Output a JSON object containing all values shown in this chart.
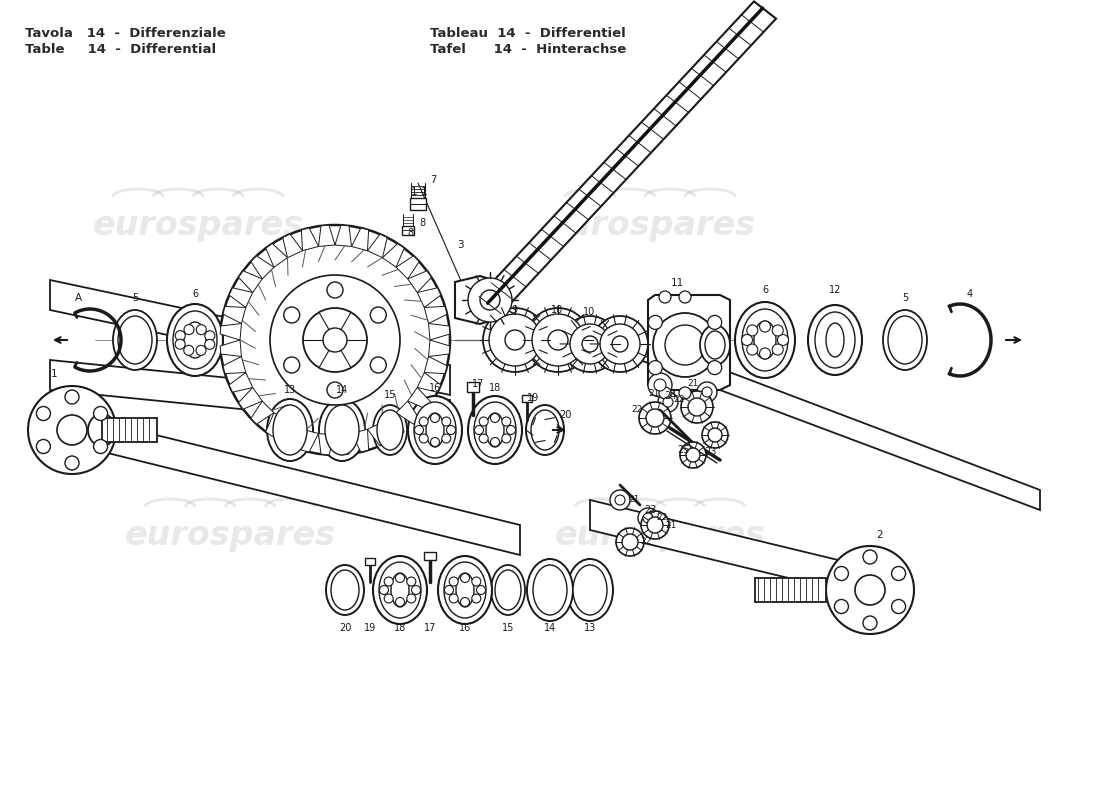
{
  "bg_color": "#ffffff",
  "line_color": "#1a1a1a",
  "header_color": "#2a2a2a",
  "watermark_color": "#cccccc",
  "watermark_alpha": 0.45,
  "figsize": [
    11.0,
    8.0
  ],
  "dpi": 100,
  "header": {
    "left1": "Tavola   14  -  Differenziale",
    "left2": "Table     14  -  Differential",
    "right1": "Tableau  14  -  Differentiel",
    "right2": "Tafel      14  -  Hinterachse"
  }
}
